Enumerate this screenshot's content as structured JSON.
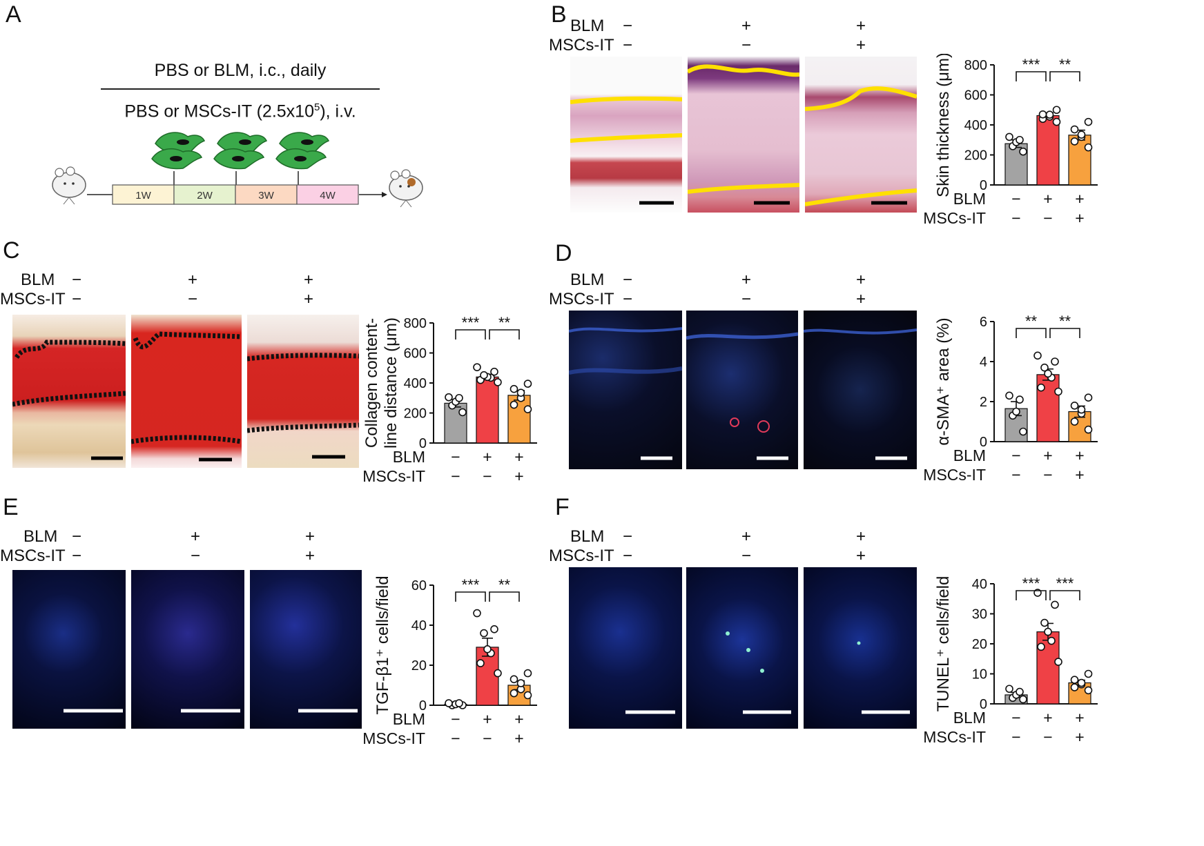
{
  "panels": {
    "A": {
      "label": "A",
      "line1": "PBS or BLM, i.c., daily",
      "line2_pre": "PBS or MSCs-IT (2.5x10",
      "line2_sup": "5",
      "line2_post": "), i.v.",
      "weeks": [
        "1W",
        "2W",
        "3W",
        "4W"
      ],
      "week_colors": [
        "#fdf3d4",
        "#e6f2cf",
        "#fcd9c2",
        "#fbd0e4"
      ]
    },
    "B": {
      "label": "B"
    },
    "C": {
      "label": "C"
    },
    "D": {
      "label": "D"
    },
    "E": {
      "label": "E"
    },
    "F": {
      "label": "F"
    }
  },
  "conditions": {
    "blm_label": "BLM",
    "msc_label": "MSCs-IT",
    "blm_signs": [
      "−",
      "+",
      "+"
    ],
    "msc_signs": [
      "−",
      "−",
      "+"
    ]
  },
  "colors": {
    "group1": "#a3a3a3",
    "group2": "#ef4146",
    "group3": "#f7a13e",
    "highlight_line": "#ffe000"
  },
  "chart_data": [
    {
      "panel": "B",
      "type": "bar",
      "ylabel": "Skin thickness (μm)",
      "ylim": [
        0,
        800
      ],
      "yticks": [
        "0",
        "200",
        "400",
        "600",
        "800"
      ],
      "means": [
        275,
        462,
        332
      ],
      "sem": [
        25,
        18,
        33
      ],
      "points": [
        [
          222,
          258,
          285,
          300,
          320
        ],
        [
          420,
          440,
          455,
          468,
          470,
          500
        ],
        [
          250,
          290,
          320,
          335,
          370,
          420
        ]
      ],
      "significance": [
        {
          "from": 0,
          "to": 1,
          "label": "***"
        },
        {
          "from": 1,
          "to": 2,
          "label": "**"
        }
      ]
    },
    {
      "panel": "C",
      "type": "bar",
      "ylabel": "Collagen content-line distance (μm)",
      "ylabel_lines": [
        "Collagen content-",
        "line distance (μm)"
      ],
      "ylim": [
        0,
        800
      ],
      "yticks": [
        "0",
        "200",
        "400",
        "600",
        "800"
      ],
      "means": [
        265,
        440,
        318
      ],
      "sem": [
        25,
        18,
        32
      ],
      "points": [
        [
          205,
          250,
          275,
          300,
          305
        ],
        [
          405,
          420,
          435,
          440,
          452,
          475,
          505
        ],
        [
          225,
          255,
          300,
          335,
          360,
          395
        ]
      ],
      "significance": [
        {
          "from": 0,
          "to": 1,
          "label": "***"
        },
        {
          "from": 1,
          "to": 2,
          "label": "**"
        }
      ]
    },
    {
      "panel": "D",
      "type": "bar",
      "ylabel": "α-SMA⁺ area (%)",
      "ylim": [
        0,
        6
      ],
      "yticks": [
        "0",
        "2",
        "4",
        "6"
      ],
      "means": [
        1.65,
        3.35,
        1.5
      ],
      "sem": [
        0.35,
        0.28,
        0.28
      ],
      "points": [
        [
          0.5,
          1.3,
          1.5,
          2.1,
          2.3
        ],
        [
          2.5,
          2.7,
          3.2,
          3.4,
          3.7,
          4.0,
          4.3
        ],
        [
          0.6,
          1.0,
          1.4,
          1.6,
          1.8,
          2.2
        ]
      ],
      "significance": [
        {
          "from": 0,
          "to": 1,
          "label": "**"
        },
        {
          "from": 1,
          "to": 2,
          "label": "**"
        }
      ]
    },
    {
      "panel": "E",
      "type": "bar",
      "ylabel": "TGF-β1⁺ cells/field",
      "ylim": [
        0,
        60
      ],
      "yticks": [
        "0",
        "20",
        "40",
        "60"
      ],
      "means": [
        0.5,
        29,
        10
      ],
      "sem": [
        0.3,
        4.5,
        2.2
      ],
      "points": [
        [
          0,
          0,
          0.5,
          1,
          1
        ],
        [
          16,
          21,
          26,
          28,
          36,
          38,
          46
        ],
        [
          5,
          6,
          8,
          11,
          13,
          16
        ]
      ],
      "significance": [
        {
          "from": 0,
          "to": 1,
          "label": "***"
        },
        {
          "from": 1,
          "to": 2,
          "label": "**"
        }
      ]
    },
    {
      "panel": "F",
      "type": "bar",
      "ylabel": "TUNEL⁺ cells/field",
      "ylim": [
        0,
        40
      ],
      "yticks": [
        "0",
        "10",
        "20",
        "30",
        "40"
      ],
      "means": [
        3,
        24,
        7
      ],
      "sem": [
        0.8,
        2.8,
        0.9
      ],
      "points": [
        [
          1.5,
          2,
          3,
          4,
          5
        ],
        [
          14,
          19,
          21,
          24,
          27,
          33,
          37
        ],
        [
          4.5,
          5.5,
          6.5,
          7,
          8,
          10
        ]
      ],
      "significance": [
        {
          "from": 0,
          "to": 1,
          "label": "***"
        },
        {
          "from": 1,
          "to": 2,
          "label": "***"
        }
      ]
    }
  ]
}
